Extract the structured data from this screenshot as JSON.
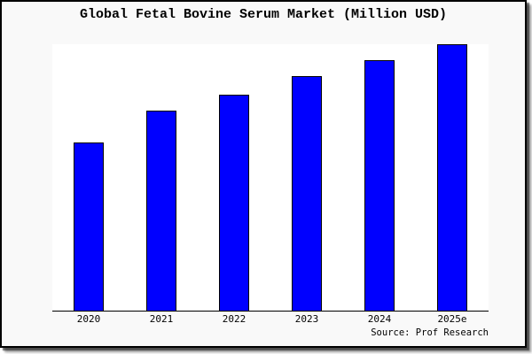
{
  "window": {
    "figure_background": "#f9f9f9",
    "plot_background": "#ffffff",
    "frame_color": "#000000",
    "shadow_color": "#808080"
  },
  "chart_data": {
    "type": "bar",
    "title": "Global Fetal Bovine Serum Market (Million USD)",
    "categories": [
      "2020",
      "2021",
      "2022",
      "2023",
      "2024",
      "2025e"
    ],
    "values": [
      63,
      75,
      81,
      88,
      94,
      100
    ],
    "values_note": "No y-axis ticks or data labels shown; values estimated from bar heights normalized to tallest bar (2025e) = 100",
    "xlabel": "",
    "ylabel": "",
    "ylim": [
      0,
      100
    ],
    "grid": false,
    "legend": false,
    "bar_color": "#0000ff",
    "bar_edge_color": "#000000",
    "axis_line": "bottom-only",
    "source_note": "Source: Prof Research"
  }
}
